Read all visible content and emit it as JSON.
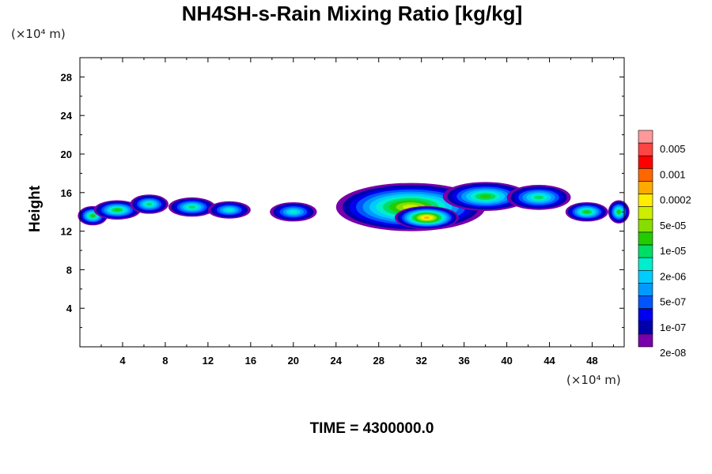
{
  "chart_data": {
    "type": "heatmap",
    "title": "NH4SH-s-Rain Mixing Ratio [kg/kg]",
    "ylabel": "Height",
    "xunit": "(×10⁴ m)",
    "yunit": "(×10⁴ m)",
    "footer": "TIME = 4300000.0",
    "xlim": [
      0,
      51
    ],
    "ylim": [
      0,
      30
    ],
    "xticks": [
      "4",
      "8",
      "12",
      "16",
      "20",
      "24",
      "28",
      "32",
      "36",
      "40",
      "44",
      "48"
    ],
    "yticks": [
      "4",
      "8",
      "12",
      "16",
      "20",
      "24",
      "28"
    ],
    "colorbar": {
      "labels": [
        "0.005",
        "0.001",
        "0.0002",
        "5e-05",
        "1e-05",
        "2e-06",
        "5e-07",
        "1e-07",
        "2e-08"
      ],
      "colors": [
        "#ff9999",
        "#ff4444",
        "#ff0000",
        "#ff6600",
        "#ffaa00",
        "#ffee00",
        "#ccee00",
        "#88dd00",
        "#22cc00",
        "#00dd66",
        "#00eecc",
        "#00ccff",
        "#0099ff",
        "#0055ff",
        "#0000ee",
        "#0000aa",
        "#7700aa"
      ]
    },
    "regions": [
      {
        "cx": 1.2,
        "cy": 13.6,
        "rx": 1.4,
        "ry": 1.0,
        "level": 8
      },
      {
        "cx": 3.5,
        "cy": 14.2,
        "rx": 2.2,
        "ry": 1.0,
        "level": 8
      },
      {
        "cx": 6.5,
        "cy": 14.8,
        "rx": 1.8,
        "ry": 1.0,
        "level": 7
      },
      {
        "cx": 10.5,
        "cy": 14.5,
        "rx": 2.2,
        "ry": 1.0,
        "level": 7
      },
      {
        "cx": 14.0,
        "cy": 14.2,
        "rx": 2.0,
        "ry": 0.9,
        "level": 6
      },
      {
        "cx": 20.0,
        "cy": 14.0,
        "rx": 2.2,
        "ry": 1.0,
        "level": 6
      },
      {
        "cx": 31.0,
        "cy": 14.5,
        "rx": 7.0,
        "ry": 2.5,
        "level": 10
      },
      {
        "cx": 32.5,
        "cy": 13.4,
        "rx": 3.0,
        "ry": 1.2,
        "level": 12
      },
      {
        "cx": 38.0,
        "cy": 15.6,
        "rx": 4.0,
        "ry": 1.5,
        "level": 8
      },
      {
        "cx": 43.0,
        "cy": 15.5,
        "rx": 3.0,
        "ry": 1.3,
        "level": 7
      },
      {
        "cx": 47.5,
        "cy": 14.0,
        "rx": 2.0,
        "ry": 1.0,
        "level": 8
      },
      {
        "cx": 50.5,
        "cy": 14.0,
        "rx": 1.0,
        "ry": 1.2,
        "level": 8
      }
    ]
  }
}
